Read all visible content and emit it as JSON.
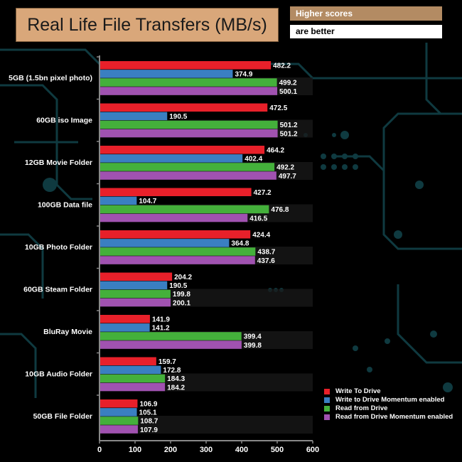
{
  "chart_data": {
    "type": "bar",
    "orientation": "horizontal",
    "title": "Real Life File Transfers (MB/s)",
    "note": [
      "Higher scores",
      "are better"
    ],
    "categories": [
      "5GB (1.5bn pixel photo)",
      "60GB iso Image",
      "12GB Movie Folder",
      "100GB Data file",
      "10GB Photo Folder",
      "60GB Steam Folder",
      "BluRay Movie",
      "10GB Audio Folder",
      "50GB File Folder"
    ],
    "series": [
      {
        "name": "Write To  Drive",
        "color": "#e8202a",
        "values": [
          482.2,
          472.5,
          464.2,
          427.2,
          424.4,
          204.2,
          141.9,
          159.7,
          106.9
        ],
        "labels": [
          "482.2",
          "472.5",
          "464.2",
          "427.2",
          "424.4",
          "204.2",
          "141.9",
          "159.7",
          "106.9"
        ]
      },
      {
        "name": "Write to Drive Momentum enabled",
        "color": "#3a7fc1",
        "values": [
          374.9,
          190.5,
          402.4,
          104.7,
          364.8,
          190.5,
          141.2,
          172.8,
          105.1
        ],
        "labels": [
          "374.9",
          "190.5",
          "402.4",
          "104.7",
          "364.8",
          "190.5",
          "141.2",
          "172.8",
          "105.1"
        ]
      },
      {
        "name": "Read from Drive",
        "color": "#44b03b",
        "values": [
          499.2,
          501.2,
          492.2,
          476.8,
          438.7,
          199.8,
          399.4,
          184.3,
          108.7
        ],
        "labels": [
          "499.2",
          "501.2",
          "492.2",
          "476.8",
          "438.7",
          "199.8",
          "399.4",
          "184.3",
          "108.7"
        ]
      },
      {
        "name": "Read from Drive Momentum enabled",
        "color": "#a052b0",
        "values": [
          500.1,
          501.2,
          497.7,
          416.5,
          437.6,
          200.1,
          399.8,
          184.2,
          107.9
        ],
        "labels": [
          "500.1",
          "501.2",
          "497.7",
          "416.5",
          "437.6",
          "200.1",
          "399.8",
          "184.2",
          "107.9"
        ]
      }
    ],
    "xticks": [
      "0",
      "100",
      "200",
      "300",
      "400",
      "500",
      "600"
    ],
    "xlim": [
      0,
      600
    ],
    "legend_position": "bottom-right",
    "grid": false
  },
  "colors": {
    "background": "#000000",
    "circuit": "#0f3a40",
    "title_bg": "#d9a77a",
    "note_bg": "#b38b63"
  }
}
